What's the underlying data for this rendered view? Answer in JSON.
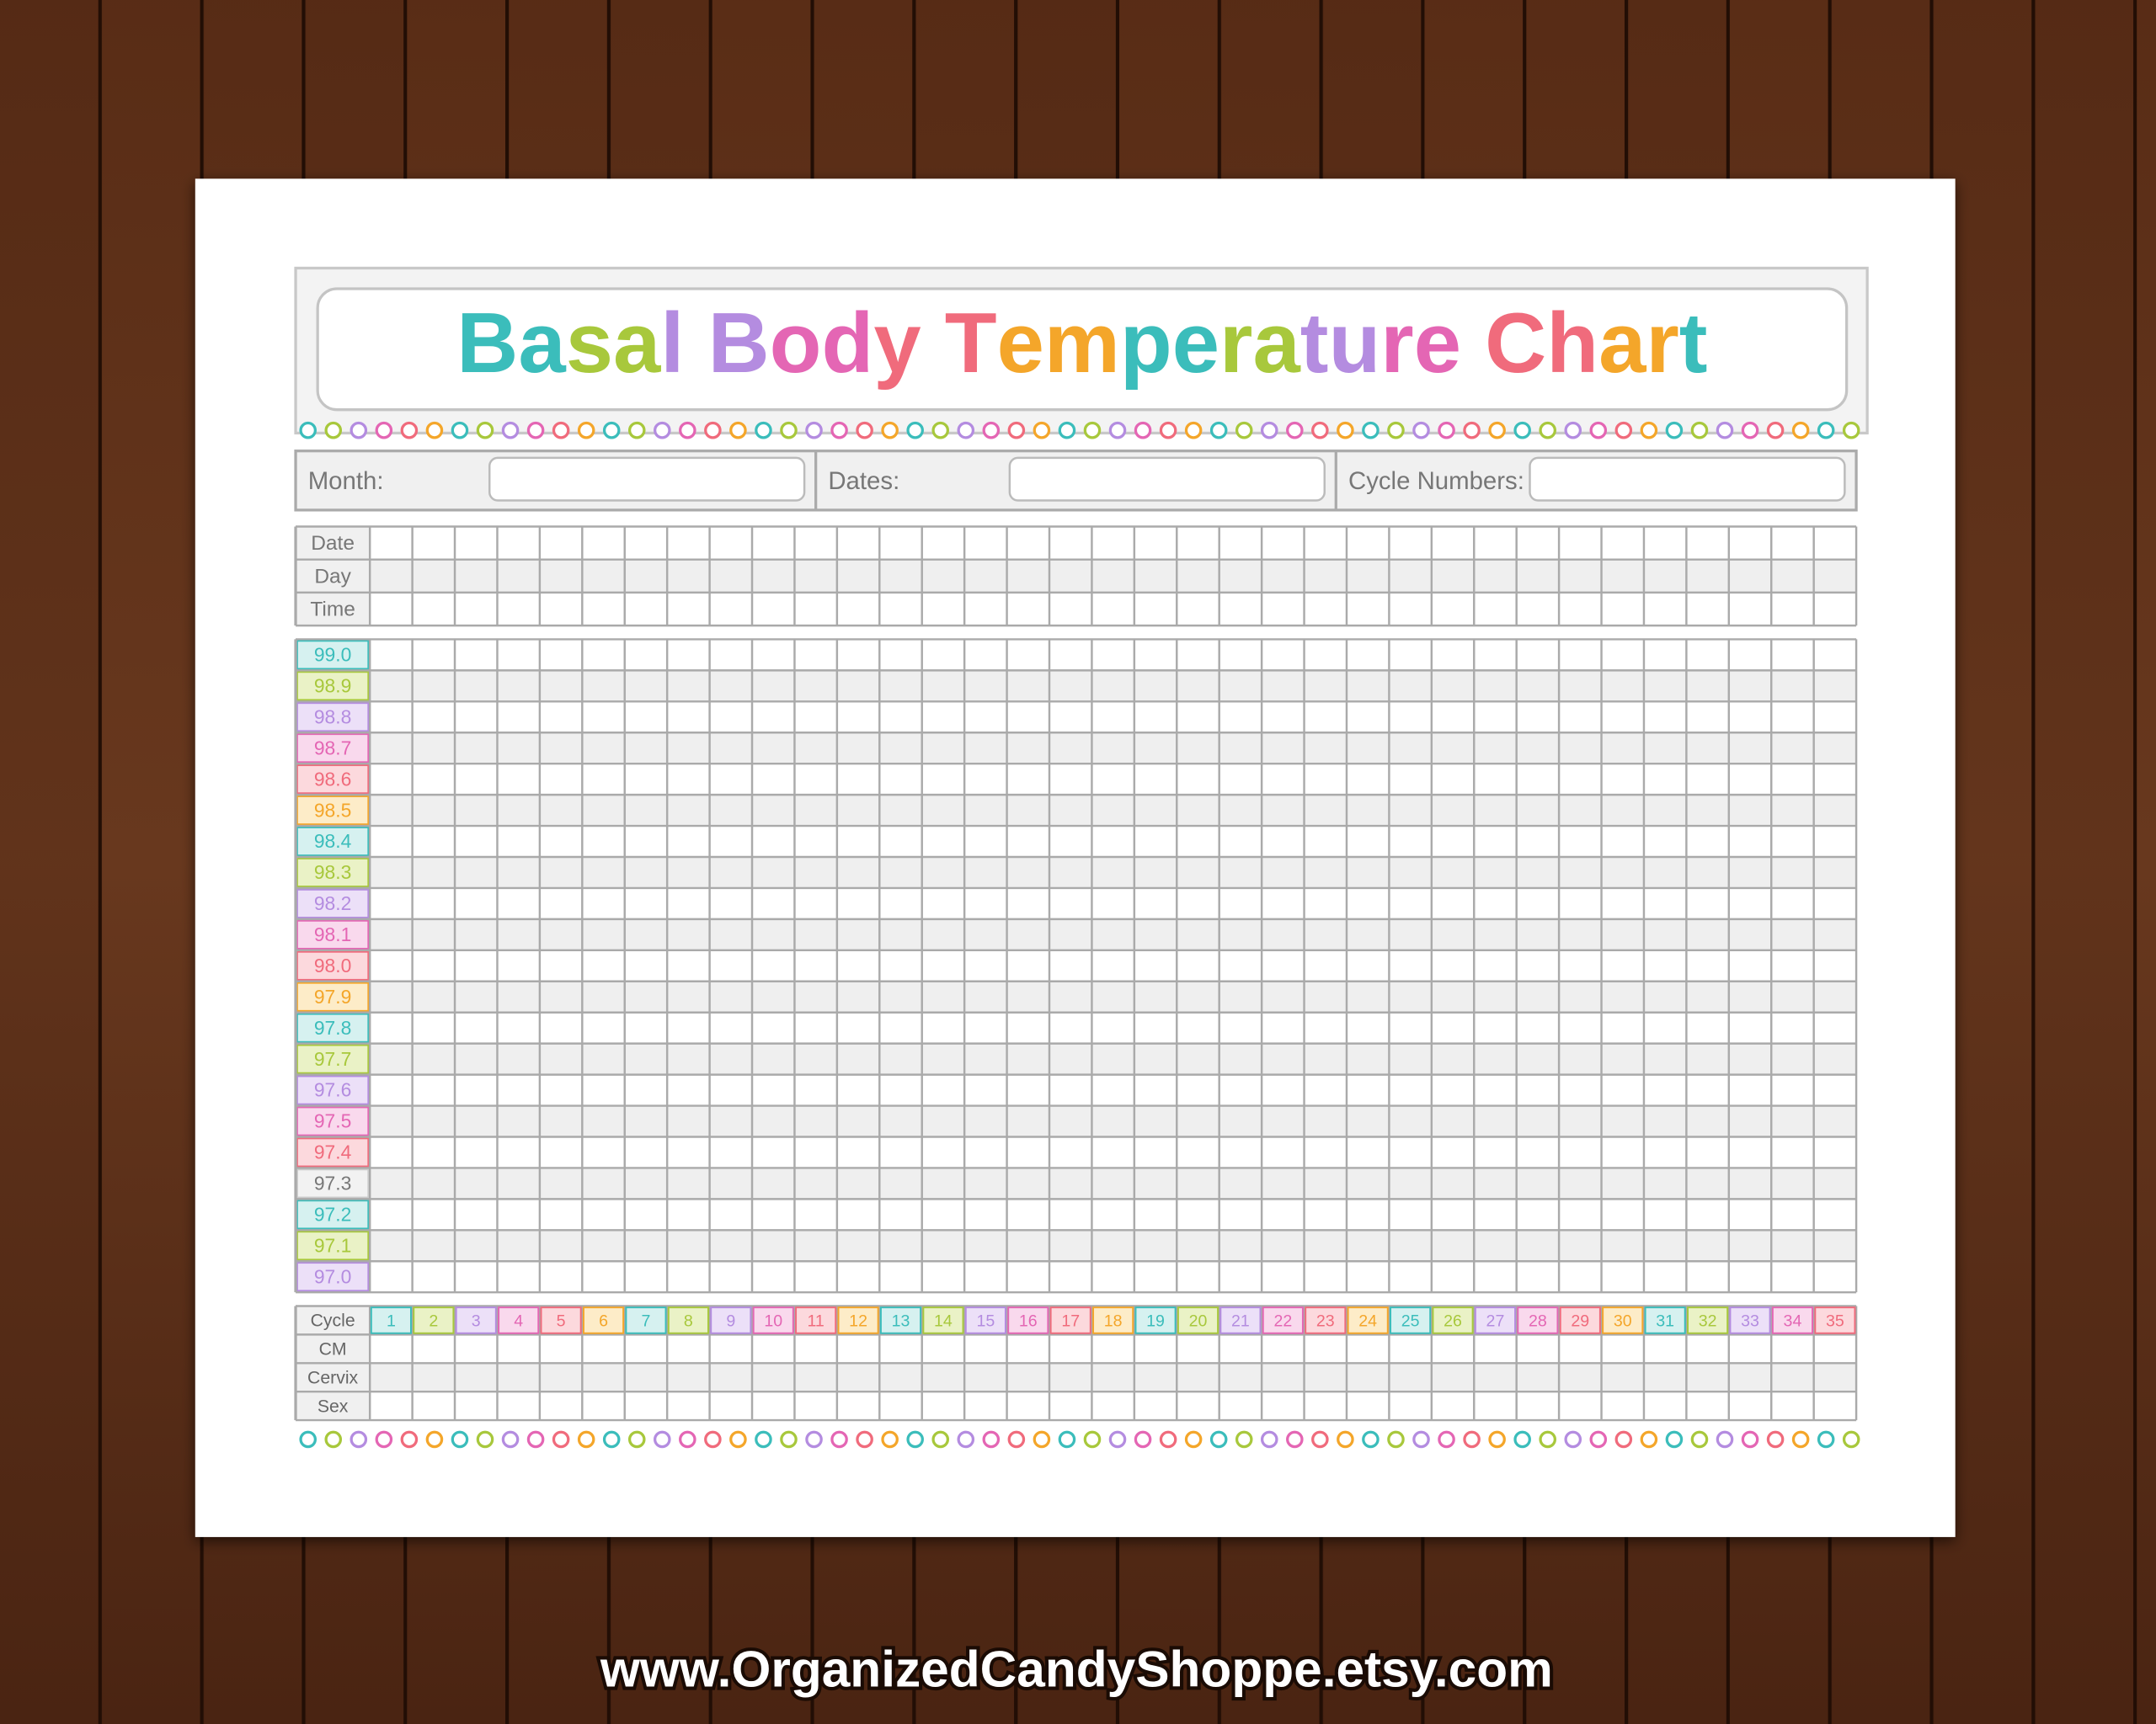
{
  "header": {
    "title": "Basal Body Temperature Chart"
  },
  "form": {
    "fields": [
      "Month:",
      "Dates:",
      "Cycle Numbers:"
    ]
  },
  "top_rows": [
    "Date",
    "Day",
    "Time"
  ],
  "temperatures": [
    "99.0",
    "98.9",
    "98.8",
    "98.7",
    "98.6",
    "98.5",
    "98.4",
    "98.3",
    "98.2",
    "98.1",
    "98.0",
    "97.9",
    "97.8",
    "97.7",
    "97.6",
    "97.5",
    "97.4",
    "97.3",
    "97.2",
    "97.1",
    "97.0"
  ],
  "cycle_label": "Cycle",
  "cycle_numbers": [
    1,
    2,
    3,
    4,
    5,
    6,
    7,
    8,
    9,
    10,
    11,
    12,
    13,
    14,
    15,
    16,
    17,
    18,
    19,
    20,
    21,
    22,
    23,
    24,
    25,
    26,
    27,
    28,
    29,
    30,
    31,
    32,
    33,
    34,
    35
  ],
  "bottom_rows": [
    "CM",
    "Cervix",
    "Sex"
  ],
  "footer": {
    "url": "www.OrganizedCandyShoppe.etsy.com"
  }
}
